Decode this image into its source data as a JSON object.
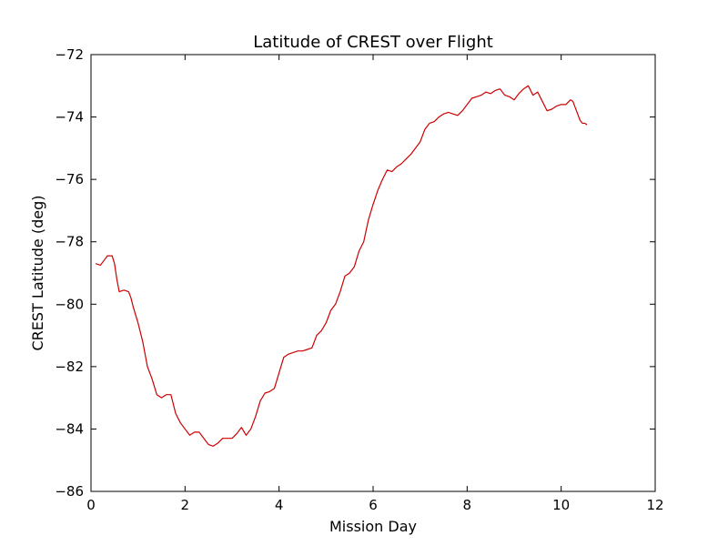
{
  "chart_data": {
    "type": "line",
    "title": "Latitude of CREST over Flight",
    "xlabel": "Mission Day",
    "ylabel": "CREST Latitude (deg)",
    "xlim": [
      0,
      12
    ],
    "ylim": [
      -86,
      -72
    ],
    "xticks": [
      0,
      2,
      4,
      6,
      8,
      10,
      12
    ],
    "yticks": [
      -86,
      -84,
      -82,
      -80,
      -78,
      -76,
      -74,
      -72
    ],
    "grid": false,
    "colors": {
      "series": "#cc0000",
      "axes": "#000000",
      "background": "#ffffff"
    },
    "series": [
      {
        "x": [
          0.1,
          0.2,
          0.3,
          0.35,
          0.45,
          0.5,
          0.55,
          0.6,
          0.7,
          0.8,
          0.85,
          0.9,
          1.0,
          1.1,
          1.2,
          1.3,
          1.4,
          1.5,
          1.6,
          1.7,
          1.8,
          1.9,
          2.0,
          2.1,
          2.2,
          2.3,
          2.4,
          2.5,
          2.6,
          2.7,
          2.8,
          2.9,
          3.0,
          3.1,
          3.2,
          3.3,
          3.4,
          3.5,
          3.6,
          3.7,
          3.8,
          3.9,
          4.0,
          4.1,
          4.2,
          4.3,
          4.4,
          4.5,
          4.6,
          4.7,
          4.8,
          4.9,
          5.0,
          5.1,
          5.2,
          5.3,
          5.4,
          5.5,
          5.6,
          5.7,
          5.8,
          5.9,
          6.0,
          6.1,
          6.2,
          6.3,
          6.4,
          6.5,
          6.6,
          6.7,
          6.8,
          6.9,
          7.0,
          7.1,
          7.2,
          7.3,
          7.4,
          7.5,
          7.6,
          7.7,
          7.8,
          7.9,
          8.0,
          8.1,
          8.2,
          8.3,
          8.4,
          8.5,
          8.6,
          8.7,
          8.8,
          8.9,
          9.0,
          9.1,
          9.2,
          9.3,
          9.4,
          9.5,
          9.6,
          9.7,
          9.8,
          9.9,
          10.0,
          10.1,
          10.2,
          10.25,
          10.3,
          10.35,
          10.4,
          10.45,
          10.5,
          10.55
        ],
        "y": [
          -78.7,
          -78.75,
          -78.55,
          -78.45,
          -78.45,
          -78.7,
          -79.2,
          -79.6,
          -79.55,
          -79.6,
          -79.8,
          -80.1,
          -80.6,
          -81.2,
          -82.0,
          -82.4,
          -82.9,
          -83.0,
          -82.9,
          -82.9,
          -83.5,
          -83.8,
          -84.0,
          -84.2,
          -84.1,
          -84.1,
          -84.3,
          -84.5,
          -84.55,
          -84.45,
          -84.3,
          -84.3,
          -84.3,
          -84.15,
          -83.95,
          -84.2,
          -84.0,
          -83.6,
          -83.1,
          -82.85,
          -82.8,
          -82.7,
          -82.2,
          -81.7,
          -81.6,
          -81.55,
          -81.5,
          -81.5,
          -81.45,
          -81.4,
          -81.0,
          -80.85,
          -80.6,
          -80.2,
          -80.0,
          -79.6,
          -79.1,
          -79.0,
          -78.8,
          -78.3,
          -78.0,
          -77.3,
          -76.8,
          -76.35,
          -76.0,
          -75.7,
          -75.75,
          -75.6,
          -75.5,
          -75.35,
          -75.2,
          -75.0,
          -74.8,
          -74.4,
          -74.2,
          -74.15,
          -74.0,
          -73.9,
          -73.85,
          -73.9,
          -73.95,
          -73.8,
          -73.6,
          -73.4,
          -73.35,
          -73.3,
          -73.2,
          -73.25,
          -73.15,
          -73.1,
          -73.3,
          -73.35,
          -73.45,
          -73.25,
          -73.1,
          -73.0,
          -73.3,
          -73.2,
          -73.5,
          -73.8,
          -73.75,
          -73.65,
          -73.6,
          -73.6,
          -73.45,
          -73.5,
          -73.7,
          -73.9,
          -74.1,
          -74.2,
          -74.2,
          -74.25
        ]
      }
    ]
  }
}
